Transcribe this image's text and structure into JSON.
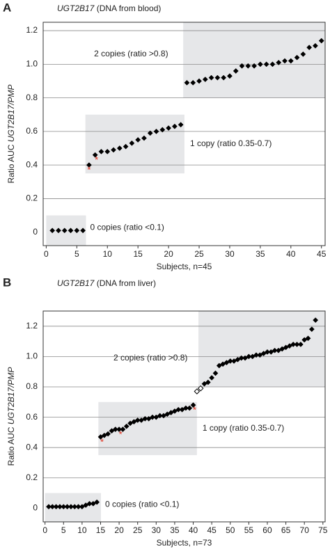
{
  "chart_data": [
    {
      "type": "scatter",
      "panel": "A",
      "title_gene": "UGT2B17",
      "title_rest": "(DNA from blood)",
      "ylabel_prefix": "Ratio AUC",
      "ylabel_italic": "UGT2B17/PMP",
      "xlabel": "Subjects, n=45",
      "x": [
        1,
        2,
        3,
        4,
        5,
        6,
        7,
        8,
        9,
        10,
        11,
        12,
        13,
        14,
        15,
        16,
        17,
        18,
        19,
        20,
        21,
        22,
        23,
        24,
        25,
        26,
        27,
        28,
        29,
        30,
        31,
        32,
        33,
        34,
        35,
        36,
        37,
        38,
        39,
        40,
        41,
        42,
        43,
        44,
        45
      ],
      "values": [
        0.01,
        0.01,
        0.01,
        0.01,
        0.01,
        0.01,
        0.4,
        0.46,
        0.48,
        0.48,
        0.49,
        0.5,
        0.51,
        0.53,
        0.55,
        0.56,
        0.59,
        0.6,
        0.61,
        0.62,
        0.63,
        0.64,
        0.89,
        0.89,
        0.9,
        0.91,
        0.92,
        0.92,
        0.92,
        0.93,
        0.96,
        0.99,
        0.99,
        0.99,
        1.0,
        1.0,
        1.0,
        1.01,
        1.02,
        1.02,
        1.04,
        1.06,
        1.1,
        1.11,
        1.14
      ],
      "color": "#000000",
      "asterisk_x": [
        7,
        8
      ],
      "asterisk_color": "#e0301e",
      "regions": [
        {
          "label": "0 copies (ratio <0.1)",
          "x": [
            0,
            6.5
          ],
          "y": [
            -0.08,
            0.1
          ]
        },
        {
          "label": "1 copy (ratio 0.35-0.7)",
          "x": [
            6.4,
            22.6
          ],
          "y": [
            0.35,
            0.7
          ]
        },
        {
          "label": "2 copies (ratio >0.8)",
          "x": [
            22.4,
            45.6
          ],
          "y": [
            0.8,
            1.25
          ]
        }
      ],
      "region_color": "#e6e7e9",
      "xlim": [
        -0.5,
        45.6
      ],
      "xticks": [
        0,
        5,
        10,
        15,
        20,
        25,
        30,
        35,
        40,
        45
      ],
      "ylim": [
        -0.08,
        1.25
      ],
      "yticks": [
        0,
        0.2,
        0.4,
        0.6,
        0.8,
        {
          "value": 1,
          "label": "1.0"
        },
        1.2
      ],
      "grid": true
    },
    {
      "type": "scatter",
      "panel": "B",
      "title_gene": "UGT2B17",
      "title_rest": "(DNA from liver)",
      "ylabel_prefix": "Ratio AUC",
      "ylabel_italic": "UGT2B17/PMP",
      "xlabel": "Subjects, n=73",
      "x": [
        1,
        2,
        3,
        4,
        5,
        6,
        7,
        8,
        9,
        10,
        11,
        12,
        13,
        14,
        15,
        16,
        17,
        18,
        19,
        20,
        21,
        22,
        23,
        24,
        25,
        26,
        27,
        28,
        29,
        30,
        31,
        32,
        33,
        34,
        35,
        36,
        37,
        38,
        39,
        40,
        41,
        42,
        43,
        44,
        45,
        46,
        47,
        48,
        49,
        50,
        51,
        52,
        53,
        54,
        55,
        56,
        57,
        58,
        59,
        60,
        61,
        62,
        63,
        64,
        65,
        66,
        67,
        68,
        69,
        70,
        71,
        72,
        73
      ],
      "values": [
        0.01,
        0.01,
        0.01,
        0.01,
        0.01,
        0.01,
        0.01,
        0.01,
        0.01,
        0.01,
        0.02,
        0.03,
        0.03,
        0.04,
        0.47,
        0.48,
        0.49,
        0.51,
        0.52,
        0.52,
        0.52,
        0.54,
        0.56,
        0.57,
        0.58,
        0.58,
        0.59,
        0.59,
        0.6,
        0.6,
        0.61,
        0.61,
        0.62,
        0.63,
        0.64,
        0.65,
        0.65,
        0.66,
        0.66,
        0.68,
        0.77,
        0.79,
        0.82,
        0.83,
        0.86,
        0.89,
        0.94,
        0.95,
        0.96,
        0.97,
        0.97,
        0.98,
        0.99,
        0.99,
        1.0,
        1.0,
        1.01,
        1.01,
        1.02,
        1.03,
        1.03,
        1.04,
        1.04,
        1.05,
        1.06,
        1.07,
        1.08,
        1.08,
        1.08,
        1.11,
        1.12,
        1.18,
        1.24
      ],
      "color": "#000000",
      "open_x": [
        41,
        42
      ],
      "asterisk_x": [
        15,
        20,
        40
      ],
      "asterisk_color": "#e0301e",
      "regions": [
        {
          "label": "0 copies (ratio <0.1)",
          "x": [
            0,
            15.1
          ],
          "y": [
            -0.09,
            0.1
          ]
        },
        {
          "label": "1 copy (ratio 0.35-0.7)",
          "x": [
            14.4,
            41
          ],
          "y": [
            0.35,
            0.7
          ]
        },
        {
          "label": "2 copies (ratio >0.8)",
          "x": [
            41.4,
            75.6
          ],
          "y": [
            0.8,
            1.3
          ]
        }
      ],
      "region_color": "#e6e7e9",
      "xlim": [
        -0.5,
        75.6
      ],
      "xticks": [
        0,
        5,
        10,
        15,
        20,
        25,
        30,
        35,
        40,
        45,
        50,
        55,
        60,
        65,
        70,
        75
      ],
      "ylim": [
        -0.09,
        1.3
      ],
      "yticks": [
        0,
        0.2,
        0.4,
        0.6,
        0.8,
        {
          "value": 1,
          "label": "1.0"
        },
        1.2
      ],
      "grid": true
    }
  ]
}
